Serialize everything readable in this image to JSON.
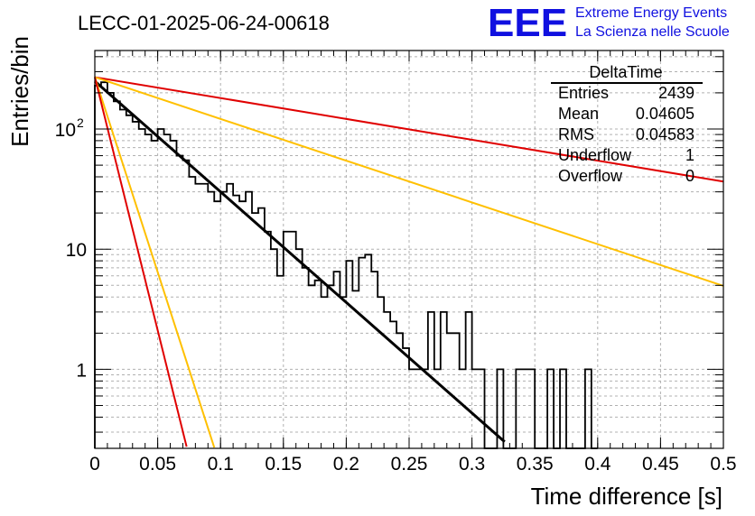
{
  "header": {
    "title": "LECC-01-2025-06-24-00618",
    "logo_text": "EEE",
    "logo_line1": "Extreme Energy Events",
    "logo_line2": "La Scienza nelle Scuole"
  },
  "stats": {
    "name": "DeltaTime",
    "rows": [
      {
        "label": "Entries",
        "value": "2439"
      },
      {
        "label": "Mean",
        "value": "0.04605"
      },
      {
        "label": "RMS",
        "value": "0.04583"
      },
      {
        "label": "Underflow",
        "value": "1"
      },
      {
        "label": "Overflow",
        "value": "0"
      }
    ]
  },
  "chart_data": {
    "type": "histogram",
    "xlabel": "Time difference [s]",
    "ylabel": "Entries/bin",
    "log_y": true,
    "xlim": [
      0,
      0.5
    ],
    "ylim": [
      0.22,
      450
    ],
    "grid": true,
    "x_ticks": [
      "0",
      "0.05",
      "0.1",
      "0.15",
      "0.2",
      "0.25",
      "0.3",
      "0.35",
      "0.4",
      "0.45",
      "0.5"
    ],
    "y_ticks": [
      {
        "value": 1,
        "label": "1"
      },
      {
        "value": 10,
        "label": "10"
      },
      {
        "value": 100,
        "label": "10",
        "exp": "2"
      }
    ],
    "bin_width": 0.005,
    "histogram": [
      {
        "x": 0.0,
        "y": 230
      },
      {
        "x": 0.005,
        "y": 245
      },
      {
        "x": 0.01,
        "y": 200
      },
      {
        "x": 0.015,
        "y": 170
      },
      {
        "x": 0.02,
        "y": 145
      },
      {
        "x": 0.025,
        "y": 130
      },
      {
        "x": 0.03,
        "y": 115
      },
      {
        "x": 0.035,
        "y": 100
      },
      {
        "x": 0.04,
        "y": 90
      },
      {
        "x": 0.045,
        "y": 80
      },
      {
        "x": 0.05,
        "y": 100
      },
      {
        "x": 0.055,
        "y": 90
      },
      {
        "x": 0.06,
        "y": 80
      },
      {
        "x": 0.065,
        "y": 60
      },
      {
        "x": 0.07,
        "y": 55
      },
      {
        "x": 0.075,
        "y": 40
      },
      {
        "x": 0.08,
        "y": 35
      },
      {
        "x": 0.085,
        "y": 35
      },
      {
        "x": 0.09,
        "y": 30
      },
      {
        "x": 0.095,
        "y": 25
      },
      {
        "x": 0.1,
        "y": 30
      },
      {
        "x": 0.105,
        "y": 35
      },
      {
        "x": 0.11,
        "y": 28
      },
      {
        "x": 0.115,
        "y": 25
      },
      {
        "x": 0.12,
        "y": 30
      },
      {
        "x": 0.125,
        "y": 20
      },
      {
        "x": 0.13,
        "y": 22
      },
      {
        "x": 0.135,
        "y": 14
      },
      {
        "x": 0.14,
        "y": 10
      },
      {
        "x": 0.145,
        "y": 6
      },
      {
        "x": 0.15,
        "y": 14
      },
      {
        "x": 0.155,
        "y": 14
      },
      {
        "x": 0.16,
        "y": 10
      },
      {
        "x": 0.165,
        "y": 7
      },
      {
        "x": 0.17,
        "y": 5
      },
      {
        "x": 0.175,
        "y": 5.5
      },
      {
        "x": 0.18,
        "y": 4
      },
      {
        "x": 0.185,
        "y": 5
      },
      {
        "x": 0.19,
        "y": 6.5
      },
      {
        "x": 0.195,
        "y": 4
      },
      {
        "x": 0.2,
        "y": 8
      },
      {
        "x": 0.205,
        "y": 4.5
      },
      {
        "x": 0.21,
        "y": 8.5
      },
      {
        "x": 0.215,
        "y": 9
      },
      {
        "x": 0.22,
        "y": 6.5
      },
      {
        "x": 0.225,
        "y": 4
      },
      {
        "x": 0.23,
        "y": 3
      },
      {
        "x": 0.235,
        "y": 2.5
      },
      {
        "x": 0.24,
        "y": 2
      },
      {
        "x": 0.245,
        "y": 1.5
      },
      {
        "x": 0.25,
        "y": 1
      },
      {
        "x": 0.255,
        "y": 1
      },
      {
        "x": 0.26,
        "y": 1
      },
      {
        "x": 0.265,
        "y": 3
      },
      {
        "x": 0.27,
        "y": 1
      },
      {
        "x": 0.275,
        "y": 3
      },
      {
        "x": 0.28,
        "y": 2
      },
      {
        "x": 0.285,
        "y": 2
      },
      {
        "x": 0.29,
        "y": 1
      },
      {
        "x": 0.295,
        "y": 3
      },
      {
        "x": 0.3,
        "y": 1
      },
      {
        "x": 0.305,
        "y": 1
      },
      {
        "x": 0.31,
        "y": 0
      },
      {
        "x": 0.315,
        "y": 0
      },
      {
        "x": 0.32,
        "y": 1
      },
      {
        "x": 0.325,
        "y": 0
      },
      {
        "x": 0.33,
        "y": 0
      },
      {
        "x": 0.335,
        "y": 1
      },
      {
        "x": 0.34,
        "y": 1
      },
      {
        "x": 0.345,
        "y": 1
      },
      {
        "x": 0.35,
        "y": 0
      },
      {
        "x": 0.355,
        "y": 0
      },
      {
        "x": 0.36,
        "y": 1
      },
      {
        "x": 0.365,
        "y": 0
      },
      {
        "x": 0.37,
        "y": 1
      },
      {
        "x": 0.375,
        "y": 0
      },
      {
        "x": 0.38,
        "y": 0
      },
      {
        "x": 0.385,
        "y": 0
      },
      {
        "x": 0.39,
        "y": 1
      },
      {
        "x": 0.395,
        "y": 0
      }
    ],
    "series": [
      {
        "color": "#000000",
        "x_range": [
          0,
          0.326
        ],
        "amplitude": 250,
        "slope": -21.2
      },
      {
        "color": "#e00000",
        "x_range": [
          0,
          0.5
        ],
        "amplitude": 270,
        "slope": -4.0
      },
      {
        "color": "#ffc000",
        "x_range": [
          0,
          0.5
        ],
        "amplitude": 270,
        "slope": -8.0
      },
      {
        "color": "#ffc000",
        "x_range": [
          0,
          0.095
        ],
        "amplitude": 270,
        "slope": -74.7
      },
      {
        "color": "#e00000",
        "x_range": [
          0,
          0.073
        ],
        "amplitude": 270,
        "slope": -97.0
      }
    ]
  }
}
